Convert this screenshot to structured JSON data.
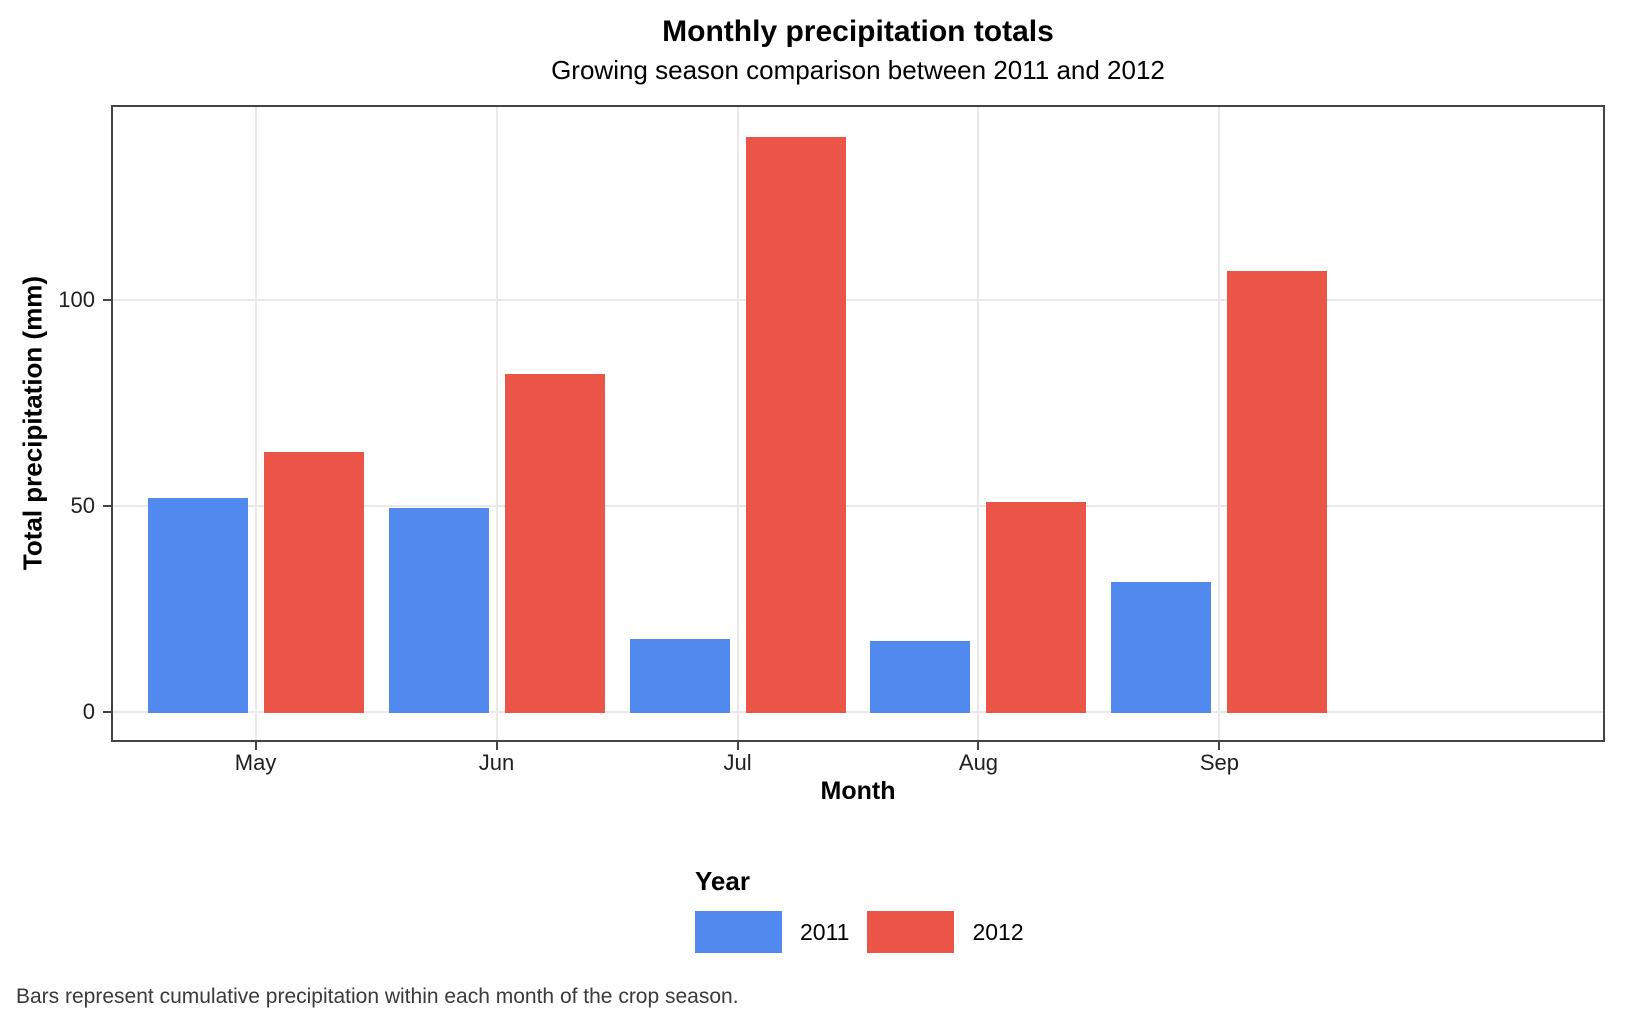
{
  "page": {
    "caption": "Bars represent cumulative precipitation within each month of the crop season."
  },
  "chart_data": {
    "type": "bar",
    "title": "Monthly precipitation totals",
    "subtitle": "Growing season comparison between 2011 and 2012",
    "xlabel": "Month",
    "ylabel": "Total precipitation (mm)",
    "categories": [
      "May",
      "Jun",
      "Jul",
      "Aug",
      "Sep"
    ],
    "series": [
      {
        "name": "2011",
        "color": "#5289EE",
        "values": [
          52,
          49.5,
          17.8,
          17.2,
          31.5
        ]
      },
      {
        "name": "2012",
        "color": "#EB5548",
        "values": [
          63,
          82,
          139.5,
          51,
          107
        ]
      }
    ],
    "yticks": [
      0,
      50,
      100
    ],
    "ylim": [
      0,
      147
    ],
    "grid": "major gridlines only, light gray, horizontal at y ticks and vertical at month centers",
    "legend": {
      "title": "Year",
      "position": "bottom"
    }
  }
}
